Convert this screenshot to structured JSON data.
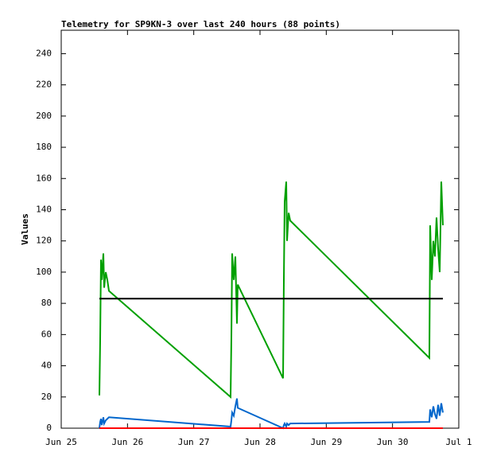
{
  "chart_data": {
    "type": "line",
    "title": "Telemetry for SP9KN-3 over last 240 hours (88 points)",
    "y_label": "Values",
    "x": [
      25.576,
      25.588,
      25.6,
      25.612,
      25.636,
      25.648,
      25.672,
      25.696,
      25.72,
      27.556,
      27.568,
      27.58,
      27.604,
      27.628,
      27.652,
      27.664,
      28.348,
      28.36,
      28.372,
      28.396,
      28.408,
      28.432,
      28.456,
      30.556,
      30.568,
      30.592,
      30.616,
      30.64,
      30.664,
      30.688,
      30.712,
      30.736,
      30.76
    ],
    "series": [
      {
        "color": "#00a000",
        "values": [
          21,
          57,
          108,
          95,
          112,
          90,
          100,
          95,
          88,
          20,
          58,
          112,
          95,
          110,
          67,
          92,
          32,
          95,
          145,
          158,
          120,
          138,
          133,
          45,
          130,
          95,
          120,
          110,
          135,
          115,
          100,
          158,
          130
        ]
      },
      {
        "color": "#0066cc",
        "values": [
          0,
          4,
          6,
          2,
          7,
          3,
          5,
          6,
          7,
          1,
          5,
          10,
          8,
          14,
          19,
          13,
          0,
          2,
          3,
          1,
          3,
          2,
          3,
          4,
          12,
          7,
          14,
          9,
          6,
          15,
          8,
          16,
          10
        ]
      },
      {
        "color": "#000000",
        "values": [
          83,
          83,
          83,
          83,
          83,
          83,
          83,
          83,
          83,
          83,
          83,
          83,
          83,
          83,
          83,
          83,
          83,
          83,
          83,
          83,
          83,
          83,
          83,
          83,
          83,
          83,
          83,
          83,
          83,
          83,
          83,
          83,
          83
        ]
      },
      {
        "color": "#ff0000",
        "values": [
          0,
          0,
          0,
          0,
          0,
          0,
          0,
          0,
          0,
          0,
          0,
          0,
          0,
          0,
          0,
          0,
          0,
          0,
          0,
          0,
          0,
          0,
          0,
          0,
          0,
          0,
          0,
          0,
          0,
          0,
          0,
          0,
          0
        ]
      }
    ],
    "xlim": [
      25,
      31
    ],
    "xticks": [
      {
        "value": 25,
        "label": "Jun 25"
      },
      {
        "value": 26,
        "label": "Jun 26"
      },
      {
        "value": 27,
        "label": "Jun 27"
      },
      {
        "value": 28,
        "label": "Jun 28"
      },
      {
        "value": 29,
        "label": "Jun 29"
      },
      {
        "value": 30,
        "label": "Jun 30"
      },
      {
        "value": 31,
        "label": "Jul 1"
      }
    ],
    "ylim": [
      0,
      255
    ],
    "yticks": [
      0,
      20,
      40,
      60,
      80,
      100,
      120,
      140,
      160,
      180,
      200,
      220,
      240
    ]
  }
}
